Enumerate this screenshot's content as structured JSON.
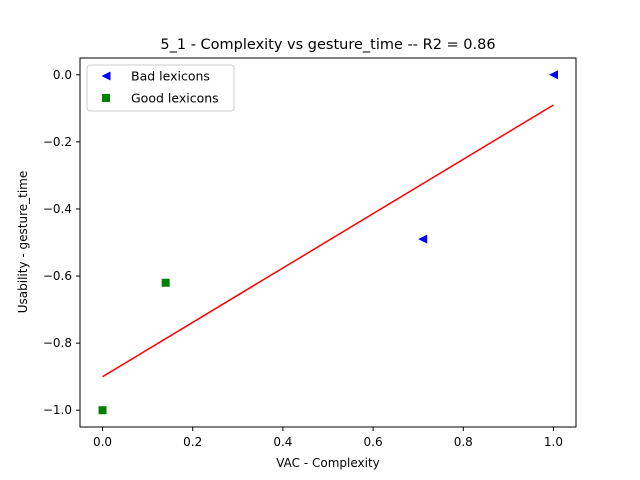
{
  "chart_data": {
    "type": "scatter",
    "title": "5_1 - Complexity  vs  gesture_time -- R2 = 0.86",
    "xlabel": "VAC - Complexity",
    "ylabel": "Usability - gesture_time",
    "xlim": [
      -0.05,
      1.05
    ],
    "ylim": [
      -1.05,
      0.05
    ],
    "xticks": [
      0.0,
      0.2,
      0.4,
      0.6,
      0.8,
      1.0
    ],
    "xtick_labels": [
      "0.0",
      "0.2",
      "0.4",
      "0.6",
      "0.8",
      "1.0"
    ],
    "yticks": [
      0.0,
      -0.2,
      -0.4,
      -0.6,
      -0.8,
      -1.0
    ],
    "ytick_labels": [
      "0.0",
      "−0.2",
      "−0.4",
      "−0.6",
      "−0.8",
      "−1.0"
    ],
    "grid": false,
    "legend_position": "top-left",
    "series": [
      {
        "name": "Bad lexicons",
        "marker": "triangle-left",
        "color": "#0000ff",
        "points": [
          {
            "x": 0.71,
            "y": -0.49
          },
          {
            "x": 1.0,
            "y": 0.0
          }
        ]
      },
      {
        "name": "Good lexicons",
        "marker": "square",
        "color": "#008000",
        "points": [
          {
            "x": 0.0,
            "y": -1.0
          },
          {
            "x": 0.14,
            "y": -0.62
          }
        ]
      }
    ],
    "fit_line": {
      "color": "#ff0000",
      "points": [
        {
          "x": 0.0,
          "y": -0.9
        },
        {
          "x": 1.0,
          "y": -0.09
        }
      ]
    }
  }
}
